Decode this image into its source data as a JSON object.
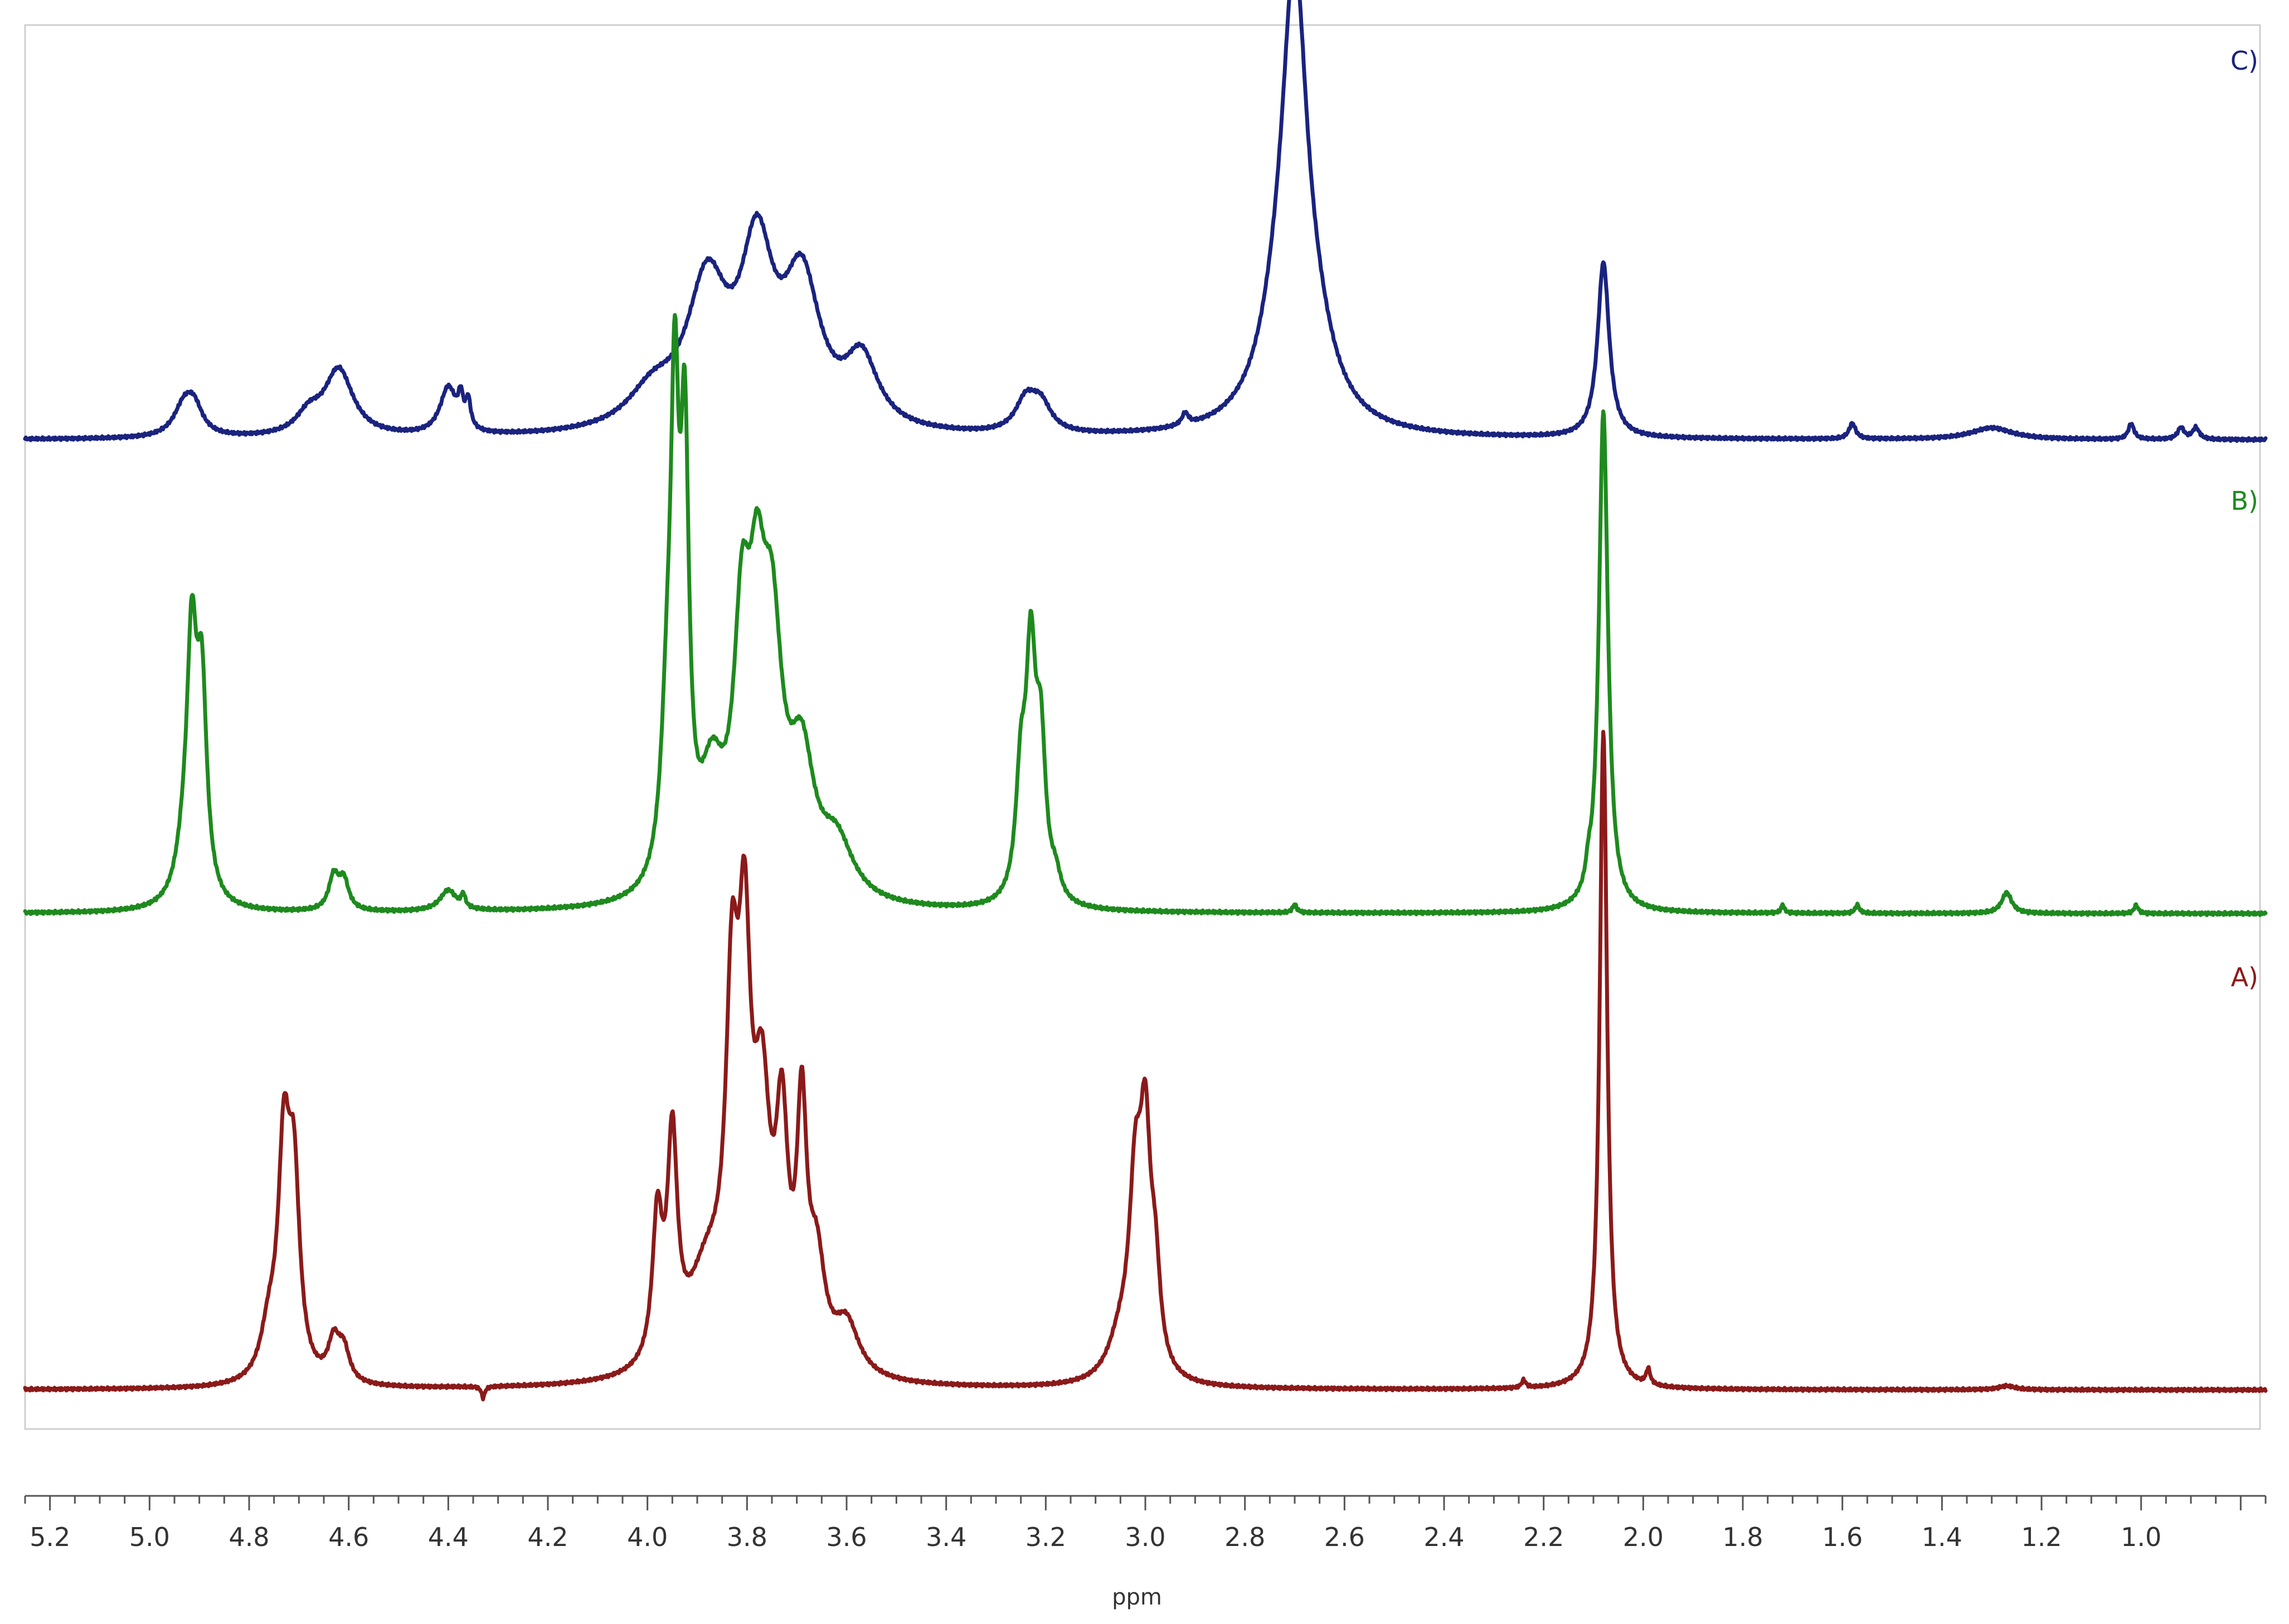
{
  "chart_data": {
    "type": "line",
    "title": "",
    "xlabel": "ppm",
    "ylabel": "",
    "x_reversed": true,
    "xlim": [
      5.25,
      0.75
    ],
    "grid": false,
    "x_ticks": [
      "5.2",
      "5.0",
      "4.8",
      "4.6",
      "4.4",
      "4.2",
      "4.0",
      "3.8",
      "3.6",
      "3.4",
      "3.2",
      "3.0",
      "2.8",
      "2.6",
      "2.4",
      "2.2",
      "2.0",
      "1.8",
      "1.6",
      "1.4",
      "1.2",
      "1.0"
    ],
    "series": [
      {
        "name": "C)",
        "color": "#1a237e",
        "peaks": [
          {
            "ppm": 4.93,
            "height": 0.08,
            "width": 0.025
          },
          {
            "ppm": 4.91,
            "height": 0.06,
            "width": 0.02
          },
          {
            "ppm": 4.62,
            "height": 0.17,
            "width": 0.035
          },
          {
            "ppm": 4.68,
            "height": 0.05,
            "width": 0.03
          },
          {
            "ppm": 4.4,
            "height": 0.12,
            "width": 0.02
          },
          {
            "ppm": 4.375,
            "height": 0.07,
            "width": 0.006
          },
          {
            "ppm": 4.36,
            "height": 0.07,
            "width": 0.006
          },
          {
            "ppm": 3.88,
            "height": 0.36,
            "width": 0.05
          },
          {
            "ppm": 3.78,
            "height": 0.42,
            "width": 0.04
          },
          {
            "ppm": 3.69,
            "height": 0.36,
            "width": 0.045
          },
          {
            "ppm": 3.57,
            "height": 0.17,
            "width": 0.04
          },
          {
            "ppm": 3.99,
            "height": 0.09,
            "width": 0.06
          },
          {
            "ppm": 3.24,
            "height": 0.08,
            "width": 0.025
          },
          {
            "ppm": 3.21,
            "height": 0.07,
            "width": 0.025
          },
          {
            "ppm": 2.92,
            "height": 0.03,
            "width": 0.008
          },
          {
            "ppm": 2.7,
            "height": 1.0,
            "width": 0.03
          },
          {
            "ppm": 2.73,
            "height": 0.2,
            "width": 0.05
          },
          {
            "ppm": 2.66,
            "height": 0.15,
            "width": 0.05
          },
          {
            "ppm": 2.08,
            "height": 0.45,
            "width": 0.014
          },
          {
            "ppm": 1.58,
            "height": 0.04,
            "width": 0.008
          },
          {
            "ppm": 1.3,
            "height": 0.03,
            "width": 0.05
          },
          {
            "ppm": 1.02,
            "height": 0.04,
            "width": 0.007
          },
          {
            "ppm": 0.92,
            "height": 0.03,
            "width": 0.008
          },
          {
            "ppm": 0.89,
            "height": 0.03,
            "width": 0.008
          }
        ]
      },
      {
        "name": "B)",
        "color": "#1e8a1e",
        "peaks": [
          {
            "ppm": 4.915,
            "height": 0.57,
            "width": 0.012
          },
          {
            "ppm": 4.895,
            "height": 0.48,
            "width": 0.012
          },
          {
            "ppm": 4.93,
            "height": 0.1,
            "width": 0.02
          },
          {
            "ppm": 4.63,
            "height": 0.08,
            "width": 0.012
          },
          {
            "ppm": 4.61,
            "height": 0.07,
            "width": 0.012
          },
          {
            "ppm": 4.4,
            "height": 0.05,
            "width": 0.02
          },
          {
            "ppm": 4.37,
            "height": 0.03,
            "width": 0.005
          },
          {
            "ppm": 3.945,
            "height": 1.0,
            "width": 0.01
          },
          {
            "ppm": 3.925,
            "height": 0.95,
            "width": 0.01
          },
          {
            "ppm": 3.96,
            "height": 0.35,
            "width": 0.015
          },
          {
            "ppm": 3.87,
            "height": 0.25,
            "width": 0.03
          },
          {
            "ppm": 3.81,
            "height": 0.55,
            "width": 0.02
          },
          {
            "ppm": 3.78,
            "height": 0.5,
            "width": 0.02
          },
          {
            "ppm": 3.75,
            "height": 0.55,
            "width": 0.025
          },
          {
            "ppm": 3.69,
            "height": 0.3,
            "width": 0.03
          },
          {
            "ppm": 3.62,
            "height": 0.13,
            "width": 0.04
          },
          {
            "ppm": 3.25,
            "height": 0.27,
            "width": 0.012
          },
          {
            "ppm": 3.23,
            "height": 0.55,
            "width": 0.012
          },
          {
            "ppm": 3.21,
            "height": 0.35,
            "width": 0.012
          },
          {
            "ppm": 3.18,
            "height": 0.05,
            "width": 0.012
          },
          {
            "ppm": 2.7,
            "height": 0.02,
            "width": 0.005
          },
          {
            "ppm": 2.08,
            "height": 1.2,
            "width": 0.011
          },
          {
            "ppm": 2.11,
            "height": 0.04,
            "width": 0.006
          },
          {
            "ppm": 1.72,
            "height": 0.02,
            "width": 0.004
          },
          {
            "ppm": 1.57,
            "height": 0.02,
            "width": 0.005
          },
          {
            "ppm": 1.27,
            "height": 0.05,
            "width": 0.012
          },
          {
            "ppm": 1.01,
            "height": 0.02,
            "width": 0.005
          }
        ]
      },
      {
        "name": "A)",
        "color": "#8b1a1a",
        "peaks": [
          {
            "ppm": 4.73,
            "height": 0.56,
            "width": 0.014
          },
          {
            "ppm": 4.71,
            "height": 0.48,
            "width": 0.014
          },
          {
            "ppm": 4.76,
            "height": 0.12,
            "width": 0.02
          },
          {
            "ppm": 4.63,
            "height": 0.1,
            "width": 0.014
          },
          {
            "ppm": 4.61,
            "height": 0.08,
            "width": 0.014
          },
          {
            "ppm": 4.33,
            "height": -0.03,
            "width": 0.004
          },
          {
            "ppm": 3.98,
            "height": 0.36,
            "width": 0.012
          },
          {
            "ppm": 3.95,
            "height": 0.55,
            "width": 0.012
          },
          {
            "ppm": 3.83,
            "height": 0.8,
            "width": 0.015
          },
          {
            "ppm": 3.805,
            "height": 0.9,
            "width": 0.015
          },
          {
            "ppm": 3.77,
            "height": 0.6,
            "width": 0.02
          },
          {
            "ppm": 3.73,
            "height": 0.55,
            "width": 0.015
          },
          {
            "ppm": 3.69,
            "height": 0.6,
            "width": 0.012
          },
          {
            "ppm": 3.66,
            "height": 0.25,
            "width": 0.02
          },
          {
            "ppm": 3.6,
            "height": 0.13,
            "width": 0.03
          },
          {
            "ppm": 3.88,
            "height": 0.25,
            "width": 0.05
          },
          {
            "ppm": 3.02,
            "height": 0.45,
            "width": 0.015
          },
          {
            "ppm": 3.0,
            "height": 0.55,
            "width": 0.013
          },
          {
            "ppm": 2.98,
            "height": 0.22,
            "width": 0.012
          },
          {
            "ppm": 3.05,
            "height": 0.1,
            "width": 0.03
          },
          {
            "ppm": 2.24,
            "height": 0.02,
            "width": 0.005
          },
          {
            "ppm": 2.08,
            "height": 1.7,
            "width": 0.009
          },
          {
            "ppm": 1.99,
            "height": 0.04,
            "width": 0.005
          },
          {
            "ppm": 1.27,
            "height": 0.01,
            "width": 0.02
          }
        ]
      }
    ]
  }
}
